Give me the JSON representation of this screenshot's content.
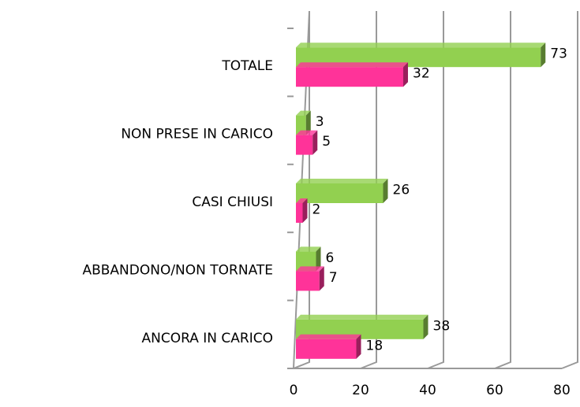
{
  "chart_data": {
    "type": "bar",
    "orientation": "horizontal",
    "categories": [
      "TOTALE",
      "NON PRESE IN CARICO",
      "CASI CHIUSI",
      "ABBANDONO/NON TORNATE",
      "ANCORA IN CARICO"
    ],
    "series": [
      {
        "color": "#92d050",
        "values": [
          73,
          3,
          26,
          6,
          38
        ]
      },
      {
        "color": "#ff3399",
        "values": [
          32,
          5,
          2,
          7,
          18
        ]
      }
    ],
    "xlim": [
      0,
      80
    ],
    "xticks": [
      0,
      20,
      40,
      60,
      80
    ],
    "grid": true
  }
}
